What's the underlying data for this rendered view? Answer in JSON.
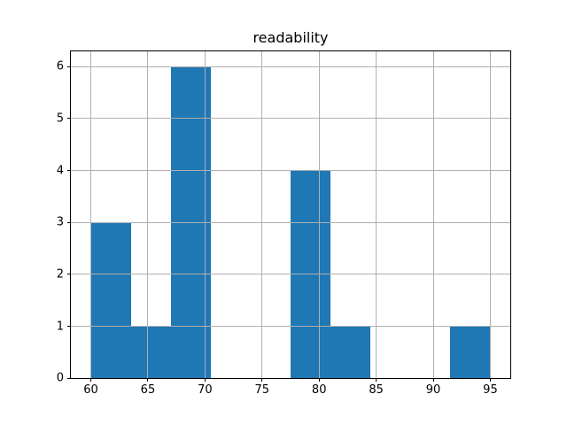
{
  "chart_data": {
    "type": "bar",
    "subtype": "histogram",
    "title": "readability",
    "xlabel": "",
    "ylabel": "",
    "bin_edges": [
      60,
      63.5,
      67,
      70.5,
      74,
      77.5,
      81,
      84.5,
      88,
      91.5,
      95
    ],
    "counts": [
      3,
      1,
      6,
      0,
      0,
      4,
      1,
      0,
      0,
      1
    ],
    "xticks": [
      60,
      65,
      70,
      75,
      80,
      85,
      90,
      95
    ],
    "yticks": [
      0,
      1,
      2,
      3,
      4,
      5,
      6
    ],
    "xlim": [
      58.25,
      96.75
    ],
    "ylim": [
      0,
      6.3
    ],
    "grid": true,
    "grid_on_top_of_bars": true,
    "legend": false,
    "bar_color": "#1f77b4",
    "grid_color": "#b0b0b0",
    "spine_color": "#000000",
    "background_color": "#ffffff"
  }
}
